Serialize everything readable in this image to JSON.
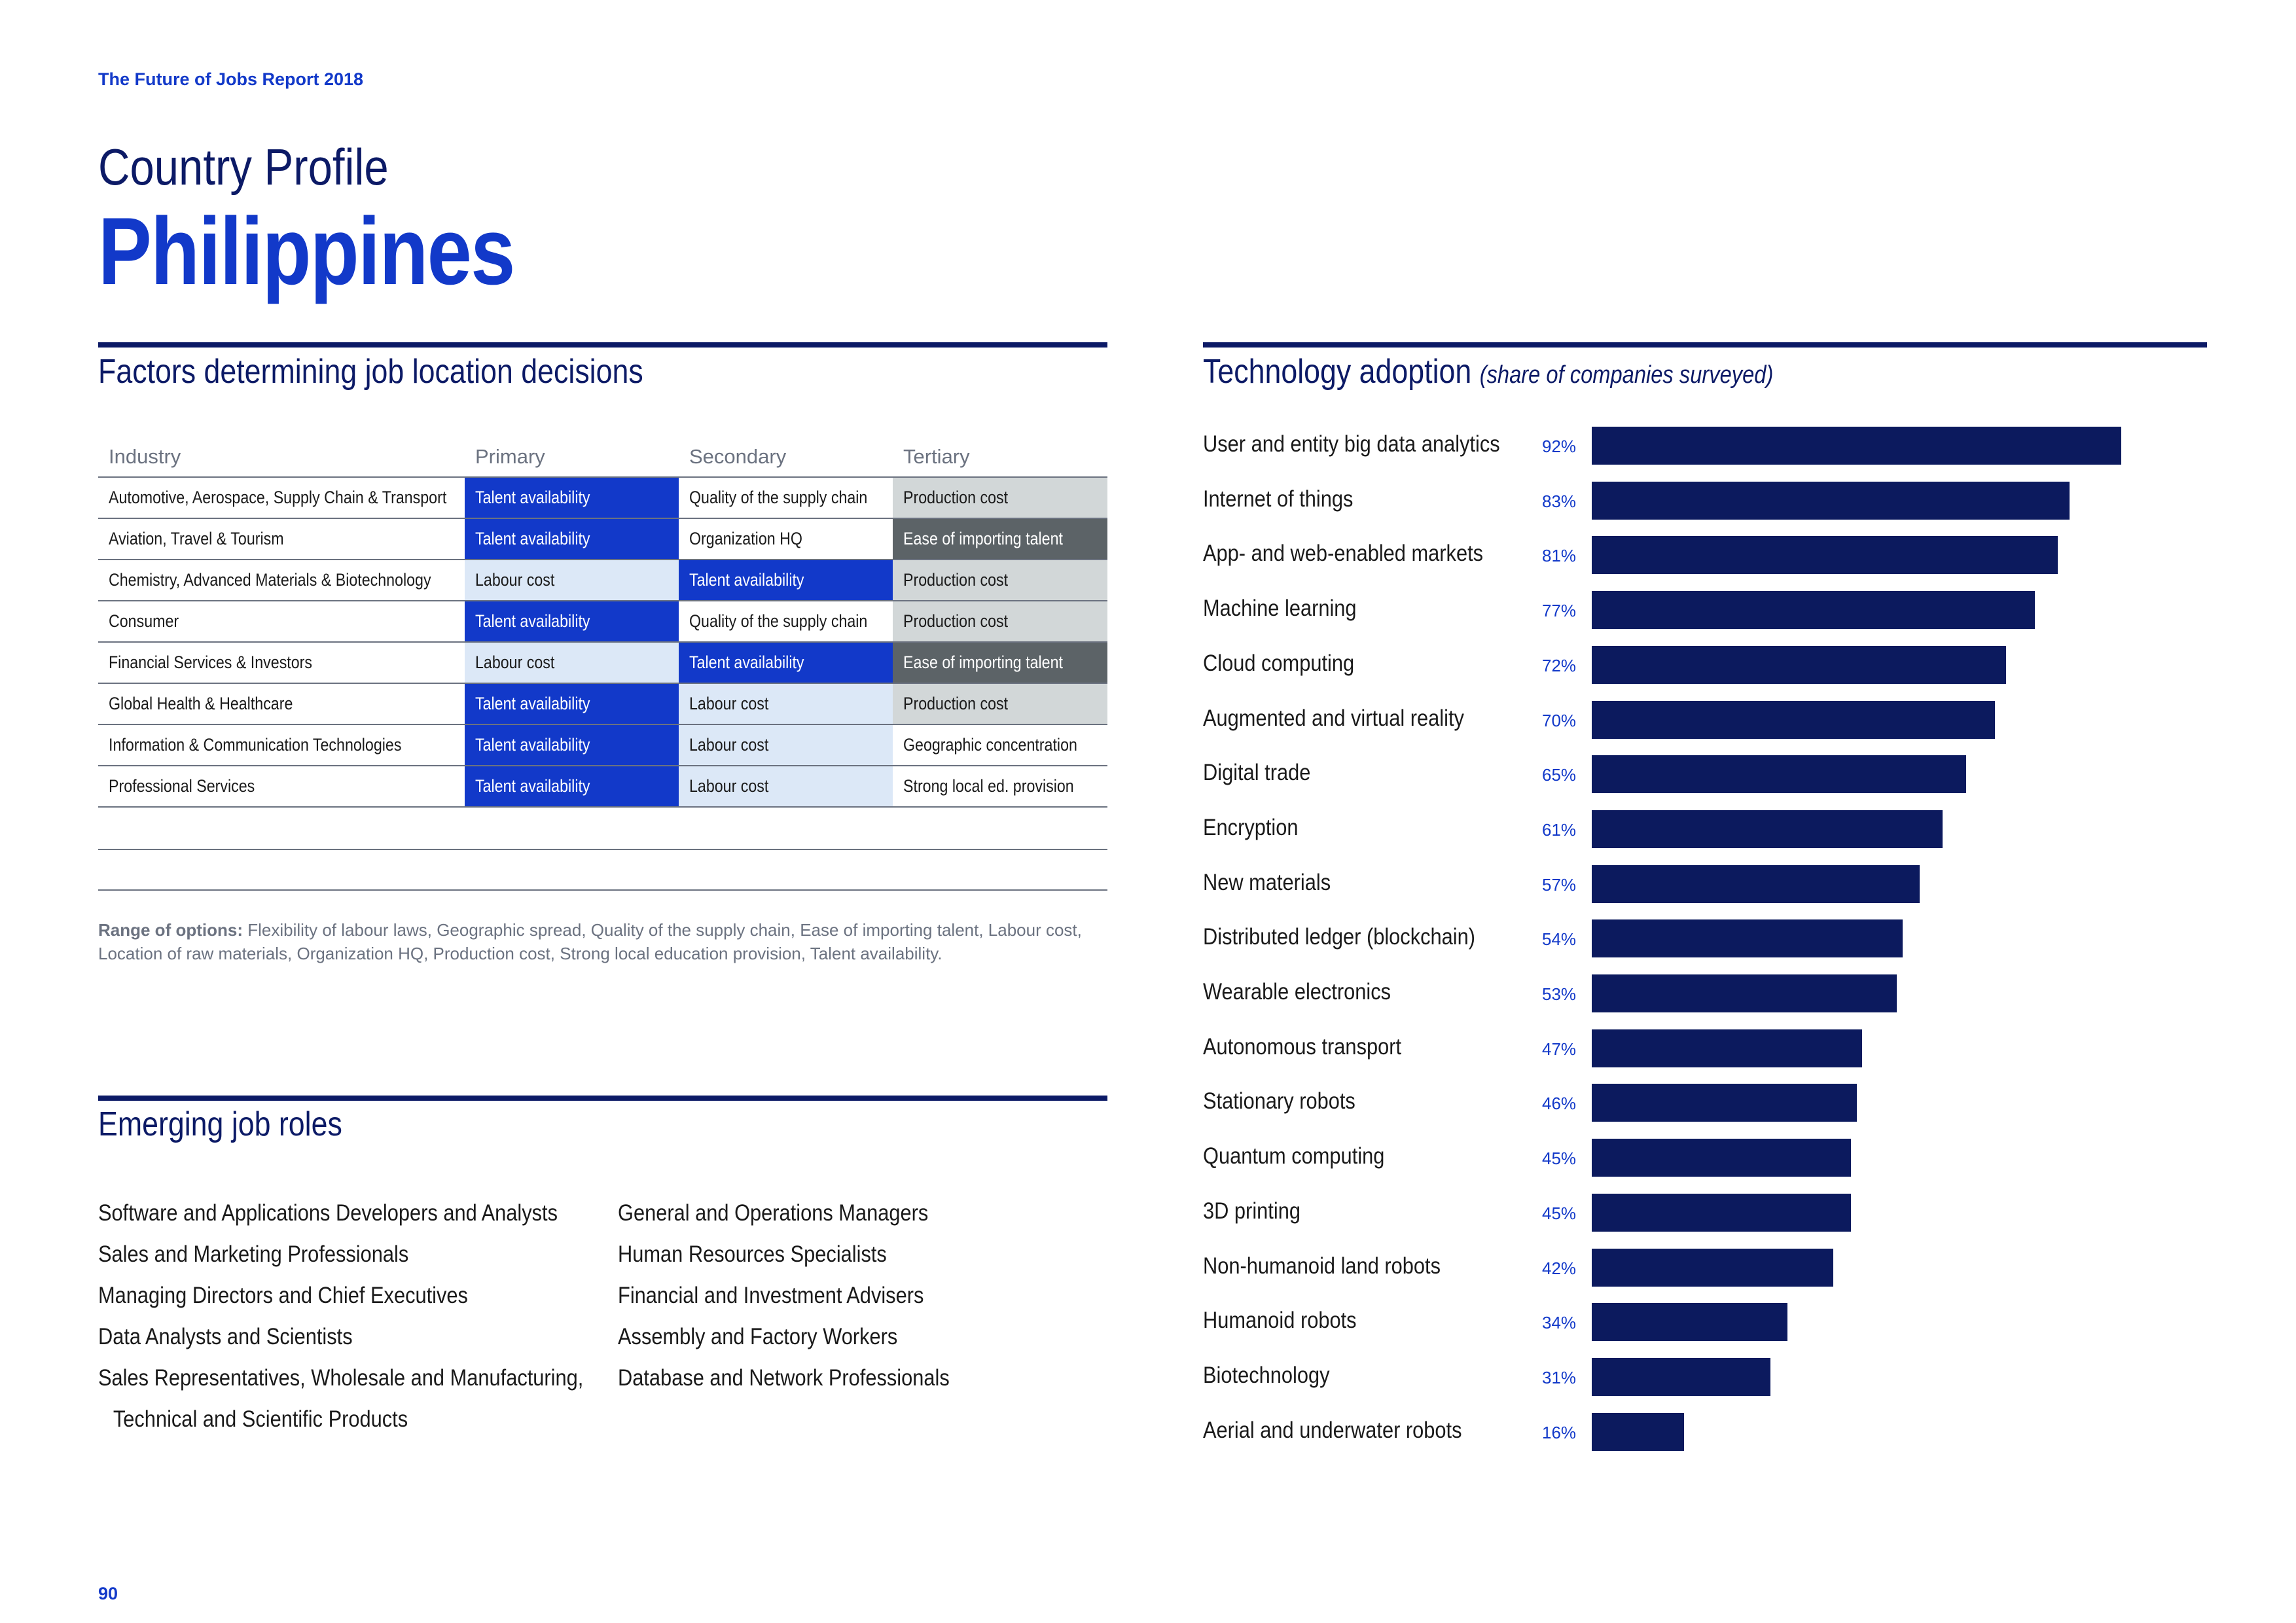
{
  "header": {
    "report_title": "The Future of Jobs Report 2018",
    "country_label": "Country Profile",
    "country_name": "Philippines"
  },
  "factors": {
    "title": "Factors determining job location decisions",
    "columns": [
      "Industry",
      "Primary",
      "Secondary",
      "Tertiary"
    ],
    "rows": [
      {
        "industry": "Automotive, Aerospace, Supply Chain & Transport",
        "primary": "Talent availability",
        "secondary": "Quality of the supply chain",
        "tertiary": "Production cost"
      },
      {
        "industry": "Aviation, Travel & Tourism",
        "primary": "Talent availability",
        "secondary": "Organization HQ",
        "tertiary": "Ease of importing talent"
      },
      {
        "industry": "Chemistry, Advanced Materials & Biotechnology",
        "primary": "Labour cost",
        "secondary": "Talent availability",
        "tertiary": "Production cost"
      },
      {
        "industry": "Consumer",
        "primary": "Talent availability",
        "secondary": "Quality of the supply chain",
        "tertiary": "Production cost"
      },
      {
        "industry": "Financial Services & Investors",
        "primary": "Labour cost",
        "secondary": "Talent availability",
        "tertiary": "Ease of importing talent"
      },
      {
        "industry": "Global Health & Healthcare",
        "primary": "Talent availability",
        "secondary": "Labour cost",
        "tertiary": "Production cost"
      },
      {
        "industry": "Information & Communication Technologies",
        "primary": "Talent availability",
        "secondary": "Labour cost",
        "tertiary": "Geographic concentration"
      },
      {
        "industry": "Professional Services",
        "primary": "Talent availability",
        "secondary": "Labour cost",
        "tertiary": "Strong local ed. provision"
      }
    ],
    "range_label": "Range of options:",
    "range_text": " Flexibility of labour laws, Geographic spread, Quality of the supply chain, Ease of importing talent, Labour cost, Location of raw materials, Organization HQ, Production cost, Strong local education provision, Talent availability."
  },
  "roles": {
    "title": "Emerging job roles",
    "left": [
      "Software and Applications Developers and Analysts",
      "Sales and Marketing Professionals",
      "Managing Directors and Chief Executives",
      "Data Analysts and Scientists",
      "Sales Representatives, Wholesale and Manufacturing,",
      "Technical and Scientific Products"
    ],
    "right": [
      "General and Operations Managers",
      "Human Resources Specialists",
      "Financial and Investment Advisers",
      "Assembly and Factory Workers",
      "Database and Network Professionals"
    ]
  },
  "tech": {
    "title": "Technology adoption",
    "subtitle": "(share of companies surveyed)"
  },
  "chart_data": {
    "type": "bar",
    "orientation": "horizontal",
    "title": "Technology adoption (share of companies surveyed)",
    "categories": [
      "User and entity big data analytics",
      "Internet of things",
      "App- and web-enabled markets",
      "Machine learning",
      "Cloud computing",
      "Augmented and virtual reality",
      "Digital trade",
      "Encryption",
      "New materials",
      "Distributed ledger (blockchain)",
      "Wearable electronics",
      "Autonomous transport",
      "Stationary robots",
      "Quantum computing",
      "3D printing",
      "Non-humanoid land robots",
      "Humanoid robots",
      "Biotechnology",
      "Aerial and underwater robots"
    ],
    "values": [
      92,
      83,
      81,
      77,
      72,
      70,
      65,
      61,
      57,
      54,
      53,
      47,
      46,
      45,
      45,
      42,
      34,
      31,
      16
    ],
    "value_labels": [
      "92%",
      "83%",
      "81%",
      "77%",
      "72%",
      "70%",
      "65%",
      "61%",
      "57%",
      "54%",
      "53%",
      "47%",
      "46%",
      "45%",
      "45%",
      "42%",
      "34%",
      "31%",
      "16%"
    ],
    "xlim": [
      0,
      100
    ],
    "unit": "%",
    "bar_color": "#0c1a5e"
  },
  "footer": {
    "page_number": "90"
  },
  "colors": {
    "accent_blue": "#1239c9",
    "navy": "#0c1a66",
    "light_blue": "#dce8f7",
    "light_grey": "#d2d7d8",
    "dark_grey": "#5c6367"
  }
}
